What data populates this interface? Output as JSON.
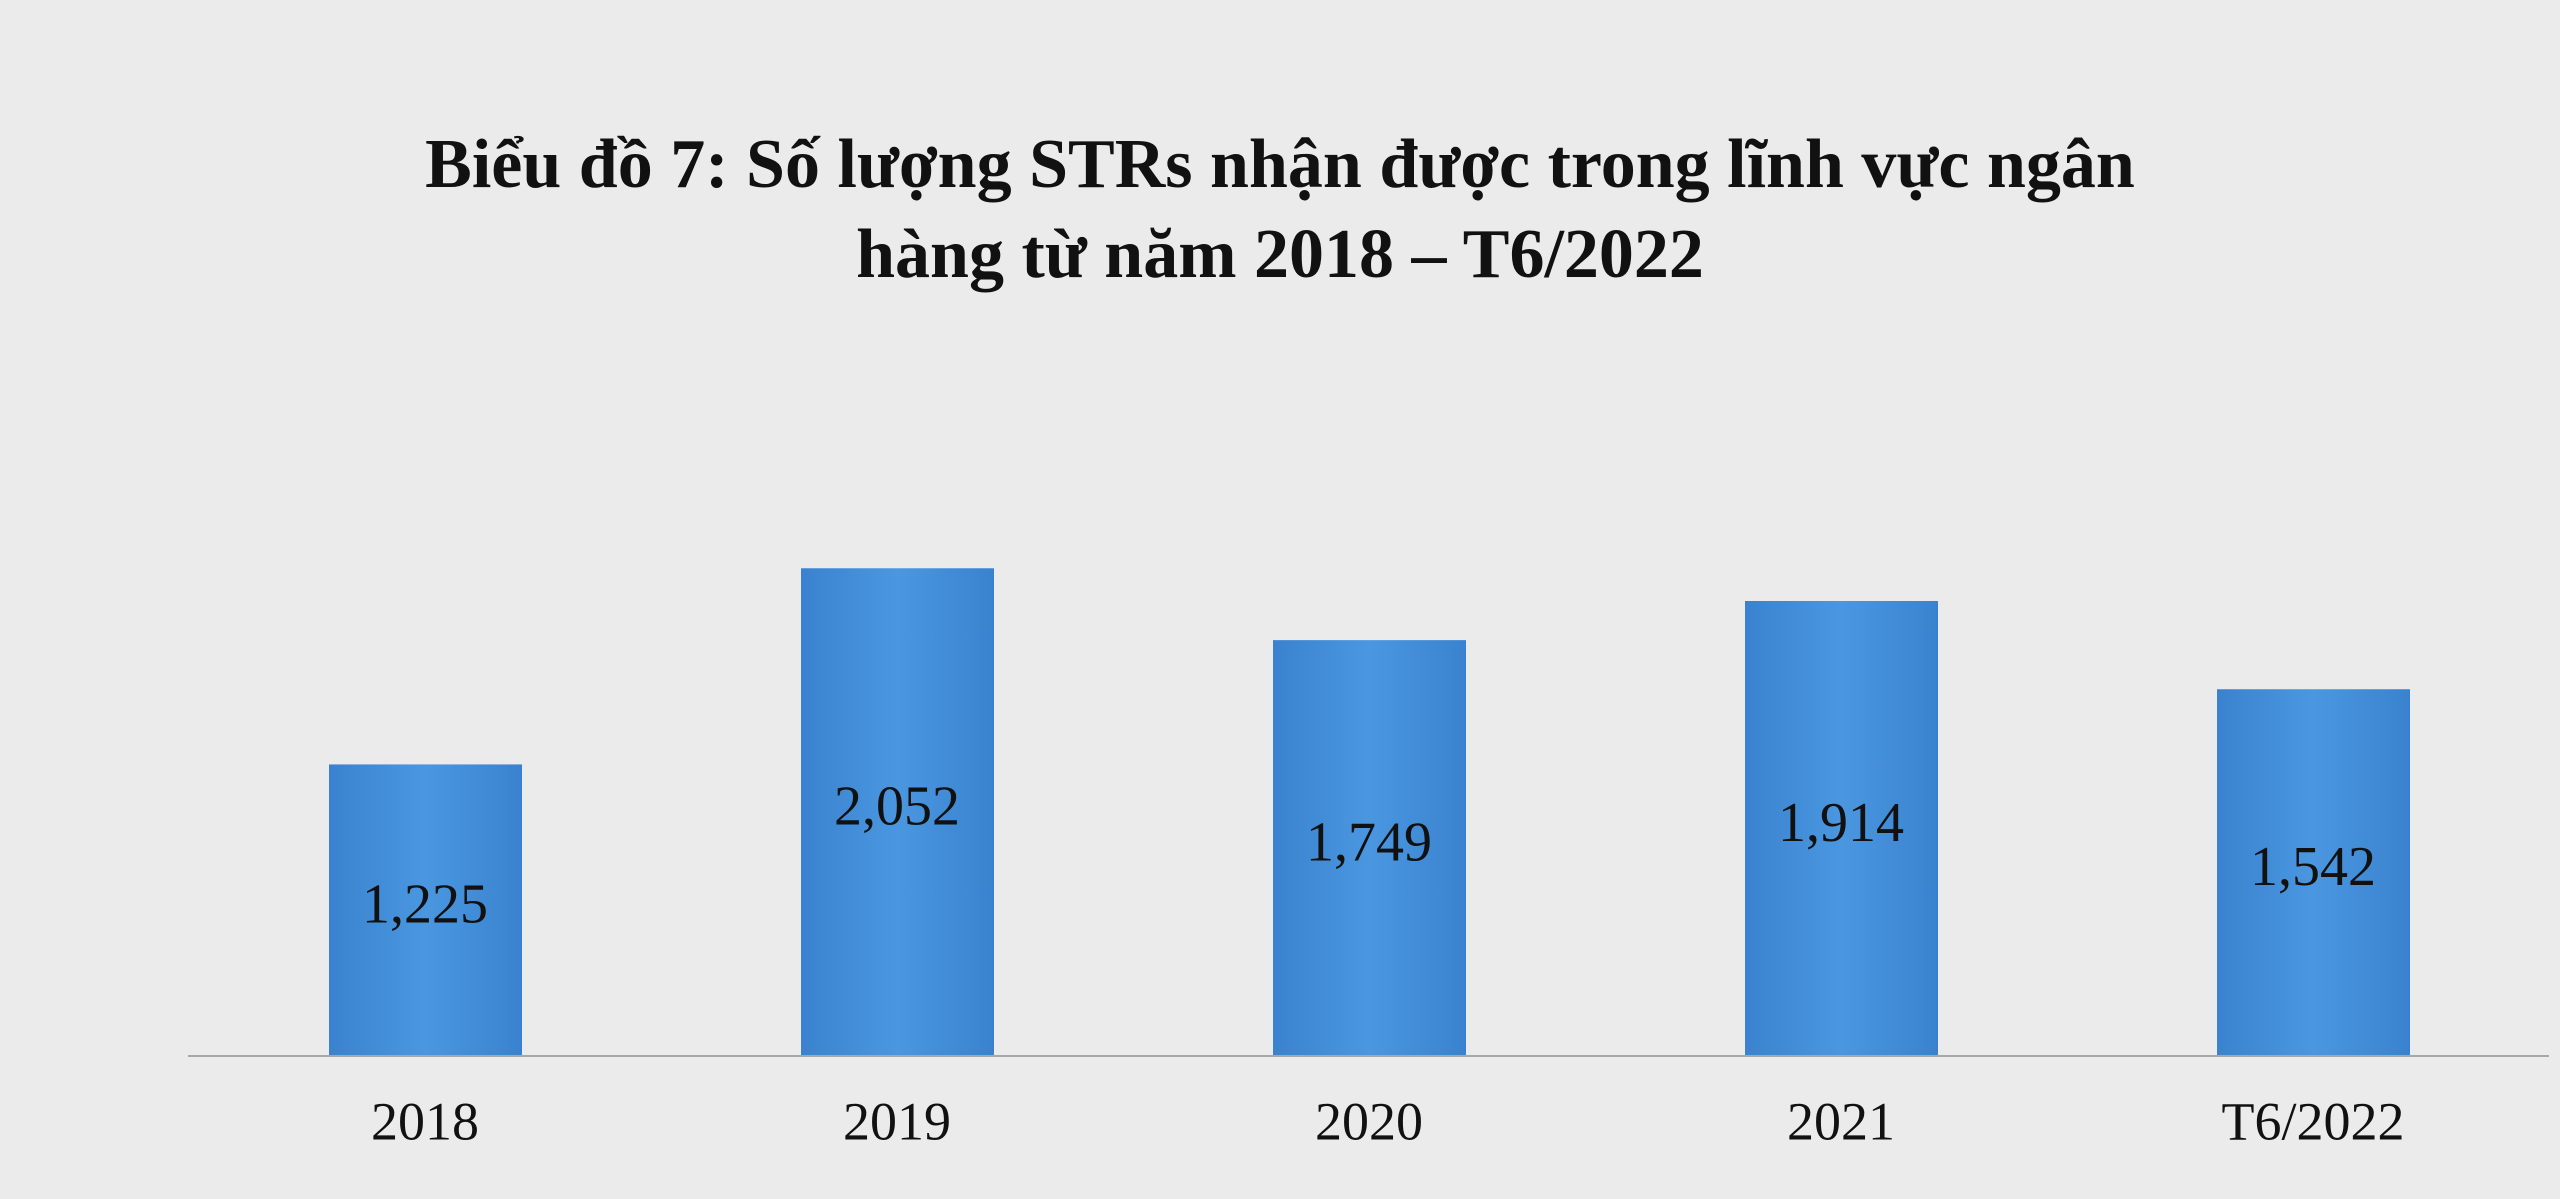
{
  "chart_data": {
    "type": "bar",
    "title": [
      "Biểu đồ 7: Số lượng STRs nhận được trong lĩnh vực ngân",
      "hàng từ năm 2018 – T6/2022"
    ],
    "categories": [
      "2018",
      "2019",
      "2020",
      "2021",
      "T6/2022"
    ],
    "values": [
      1225,
      2052,
      1749,
      1914,
      1542
    ],
    "value_labels": [
      "1,225",
      "2,052",
      "1,749",
      "1,914",
      "1,542"
    ],
    "color": "#4390da",
    "ylim": [
      0,
      2500
    ]
  }
}
